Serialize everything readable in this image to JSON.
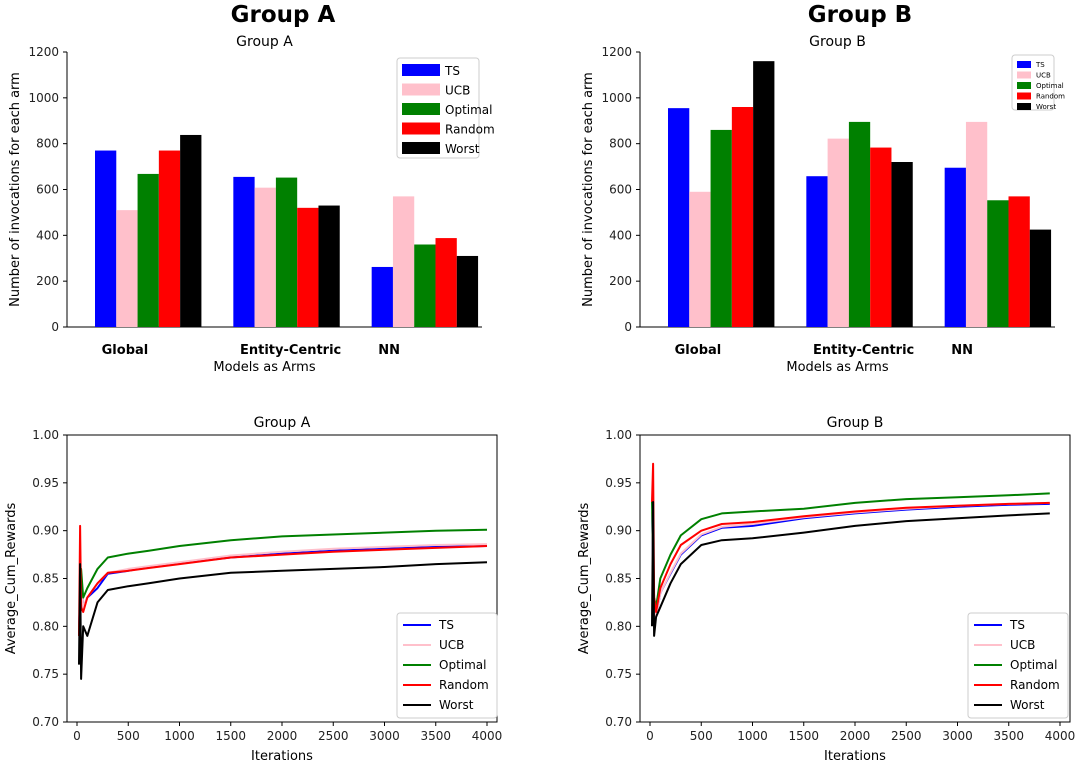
{
  "figure_titles": [
    "Group A",
    "Group B"
  ],
  "chart_data": [
    {
      "type": "bar",
      "title": "Group A",
      "xlabel": "Models as Arms",
      "ylabel": "Number of invocations for each arm",
      "ylim": [
        0,
        1200
      ],
      "yticks": [
        0,
        200,
        400,
        600,
        800,
        1000,
        1200
      ],
      "categories": [
        "Global",
        "Entity-Centric",
        "NN"
      ],
      "series": [
        {
          "name": "TS",
          "color": "#0000ff",
          "values": [
            770,
            655,
            262
          ]
        },
        {
          "name": "UCB",
          "color": "#ffc0cb",
          "values": [
            510,
            608,
            570
          ]
        },
        {
          "name": "Optimal",
          "color": "#008000",
          "values": [
            668,
            652,
            360
          ]
        },
        {
          "name": "Random",
          "color": "#ff0000",
          "values": [
            770,
            520,
            388
          ]
        },
        {
          "name": "Worst",
          "color": "#000000",
          "values": [
            838,
            530,
            310
          ]
        }
      ],
      "legend": "top-right"
    },
    {
      "type": "bar",
      "title": "Group B",
      "xlabel": "Models as Arms",
      "ylabel": "Number of invocations for each arm",
      "ylim": [
        0,
        1200
      ],
      "yticks": [
        0,
        200,
        400,
        600,
        800,
        1000,
        1200
      ],
      "categories": [
        "Global",
        "Entity-Centric",
        "NN"
      ],
      "series": [
        {
          "name": "TS",
          "color": "#0000ff",
          "values": [
            955,
            658,
            695
          ]
        },
        {
          "name": "UCB",
          "color": "#ffc0cb",
          "values": [
            590,
            822,
            895
          ]
        },
        {
          "name": "Optimal",
          "color": "#008000",
          "values": [
            860,
            895,
            553
          ]
        },
        {
          "name": "Random",
          "color": "#ff0000",
          "values": [
            960,
            783,
            570
          ]
        },
        {
          "name": "Worst",
          "color": "#000000",
          "values": [
            1160,
            720,
            425
          ]
        }
      ],
      "legend": "top-right"
    },
    {
      "type": "line",
      "title": "Group A",
      "xlabel": "Iterations",
      "ylabel": "Average_Cum_Rewards",
      "xlim": [
        0,
        4000
      ],
      "ylim": [
        0.7,
        1.0
      ],
      "xticks": [
        0,
        500,
        1000,
        1500,
        2000,
        2500,
        3000,
        3500,
        4000
      ],
      "yticks": [
        "0.70",
        "0.75",
        "0.80",
        "0.85",
        "0.90",
        "0.95",
        "1.00"
      ],
      "series": [
        {
          "name": "TS",
          "color": "#0000ff",
          "x": [
            20,
            40,
            60,
            100,
            200,
            300,
            500,
            700,
            1000,
            1500,
            2000,
            2500,
            3000,
            3500,
            4000
          ],
          "y": [
            0.8,
            0.85,
            0.82,
            0.83,
            0.84,
            0.855,
            0.858,
            0.862,
            0.866,
            0.872,
            0.876,
            0.879,
            0.881,
            0.883,
            0.884
          ]
        },
        {
          "name": "UCB",
          "color": "#ffc0cb",
          "x": [
            20,
            40,
            60,
            100,
            200,
            300,
            500,
            700,
            1000,
            1500,
            2000,
            2500,
            3000,
            3500,
            4000
          ],
          "y": [
            0.8,
            0.85,
            0.82,
            0.83,
            0.845,
            0.856,
            0.86,
            0.863,
            0.867,
            0.874,
            0.878,
            0.881,
            0.883,
            0.885,
            0.886
          ]
        },
        {
          "name": "Optimal",
          "color": "#008000",
          "x": [
            20,
            40,
            60,
            100,
            200,
            300,
            500,
            700,
            1000,
            1500,
            2000,
            2500,
            3000,
            3500,
            4000
          ],
          "y": [
            0.79,
            0.86,
            0.83,
            0.84,
            0.86,
            0.872,
            0.876,
            0.879,
            0.884,
            0.89,
            0.894,
            0.896,
            0.898,
            0.9,
            0.901
          ]
        },
        {
          "name": "Random",
          "color": "#ff0000",
          "x": [
            20,
            30,
            40,
            60,
            100,
            200,
            300,
            500,
            700,
            1000,
            1500,
            2000,
            2500,
            3000,
            3500,
            4000
          ],
          "y": [
            0.79,
            0.905,
            0.82,
            0.815,
            0.83,
            0.845,
            0.856,
            0.858,
            0.861,
            0.865,
            0.872,
            0.875,
            0.878,
            0.88,
            0.882,
            0.884
          ]
        },
        {
          "name": "Worst",
          "color": "#000000",
          "x": [
            20,
            30,
            40,
            60,
            100,
            200,
            300,
            500,
            700,
            1000,
            1500,
            2000,
            2500,
            3000,
            3500,
            4000
          ],
          "y": [
            0.76,
            0.865,
            0.745,
            0.8,
            0.79,
            0.825,
            0.838,
            0.842,
            0.845,
            0.85,
            0.856,
            0.858,
            0.86,
            0.862,
            0.865,
            0.867
          ]
        }
      ],
      "legend": "bottom-right"
    },
    {
      "type": "line",
      "title": "Group B",
      "xlabel": "Iterations",
      "ylabel": "Average_Cum_Rewards",
      "xlim": [
        0,
        4000
      ],
      "ylim": [
        0.7,
        1.0
      ],
      "xticks": [
        0,
        500,
        1000,
        1500,
        2000,
        2500,
        3000,
        3500,
        4000
      ],
      "yticks": [
        "0.70",
        "0.75",
        "0.80",
        "0.85",
        "0.90",
        "0.95",
        "1.00"
      ],
      "series": [
        {
          "name": "TS",
          "color": "#0000ff",
          "x": [
            20,
            40,
            60,
            100,
            200,
            300,
            500,
            700,
            1000,
            1500,
            2000,
            2500,
            3000,
            3500,
            3900
          ],
          "y": [
            0.92,
            0.82,
            0.81,
            0.835,
            0.855,
            0.875,
            0.895,
            0.903,
            0.905,
            0.913,
            0.918,
            0.922,
            0.925,
            0.927,
            0.928
          ]
        },
        {
          "name": "UCB",
          "color": "#ffc0cb",
          "x": [
            20,
            40,
            60,
            100,
            200,
            300,
            500,
            700,
            1000,
            1500,
            2000,
            2500,
            3000,
            3500,
            3900
          ],
          "y": [
            0.92,
            0.82,
            0.81,
            0.835,
            0.856,
            0.876,
            0.896,
            0.904,
            0.907,
            0.914,
            0.919,
            0.923,
            0.926,
            0.928,
            0.929
          ]
        },
        {
          "name": "Optimal",
          "color": "#008000",
          "x": [
            20,
            40,
            60,
            100,
            200,
            300,
            500,
            700,
            1000,
            1500,
            2000,
            2500,
            3000,
            3500,
            3900
          ],
          "y": [
            0.93,
            0.83,
            0.82,
            0.85,
            0.875,
            0.895,
            0.912,
            0.918,
            0.92,
            0.923,
            0.929,
            0.933,
            0.935,
            0.937,
            0.939
          ]
        },
        {
          "name": "Random",
          "color": "#ff0000",
          "x": [
            20,
            30,
            40,
            60,
            100,
            200,
            300,
            500,
            700,
            1000,
            1500,
            2000,
            2500,
            3000,
            3500,
            3900
          ],
          "y": [
            0.93,
            0.97,
            0.83,
            0.815,
            0.84,
            0.865,
            0.885,
            0.9,
            0.907,
            0.909,
            0.915,
            0.92,
            0.924,
            0.926,
            0.928,
            0.929
          ]
        },
        {
          "name": "Worst",
          "color": "#000000",
          "x": [
            20,
            30,
            40,
            60,
            100,
            200,
            300,
            500,
            700,
            1000,
            1500,
            2000,
            2500,
            3000,
            3500,
            3900
          ],
          "y": [
            0.8,
            0.93,
            0.79,
            0.81,
            0.82,
            0.845,
            0.865,
            0.885,
            0.89,
            0.892,
            0.898,
            0.905,
            0.91,
            0.913,
            0.916,
            0.918
          ]
        }
      ],
      "legend": "bottom-right"
    }
  ]
}
